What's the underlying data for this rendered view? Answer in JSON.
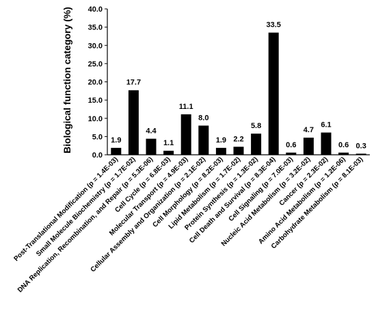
{
  "chart_data": {
    "type": "bar",
    "title": "",
    "xlabel": "",
    "ylabel": "Biological function category (%)",
    "ylim": [
      0,
      40
    ],
    "yticks": [
      "0.0",
      "5.0",
      "10.0",
      "15.0",
      "20.0",
      "25.0",
      "30.0",
      "35.0",
      "40.0"
    ],
    "grid": false,
    "legend": "none",
    "bar_color": "#000000",
    "categories": [
      "Post-Translational Modification (p = 1.4E-03)",
      "Small Molecule Biochemistry (p = 1.7E-02)",
      "DNA Replication, Recombination, and Repair (p = 5.3E-06)",
      "Cell Cycle (p = 6.8E-03)",
      "Molecular Transport (p = 4.9E-03)",
      "Cellular Assembly and Organization (p = 2.1E-02)",
      "Cell Morphology (p = 8.2E-03)",
      "Lipid Metabolism (p = 1.7E-02)",
      "Protein Synthesis (p = 1.3E-02)",
      "Cell Death and Survival (p = 8.3E-04)",
      "Cell Signaling (p = 7.0E-03)",
      "Nucleic Acid Metabolism (p = 3.2E-02)",
      "Cancer (p = 2.3E-02)",
      "Amino Acid Metabolism (p = 1.2E-06)",
      "Carbohydrate Metabolism (p = 8.1E-03)"
    ],
    "values": [
      1.9,
      17.7,
      4.4,
      1.1,
      11.1,
      8.0,
      1.9,
      2.2,
      5.8,
      33.5,
      0.6,
      4.7,
      6.1,
      0.6,
      0.3
    ],
    "data_labels": [
      "1.9",
      "17.7",
      "4.4",
      "1.1",
      "11.1",
      "8.0",
      "1.9",
      "2.2",
      "5.8",
      "33.5",
      "0.6",
      "4.7",
      "6.1",
      "0.6",
      "0.3"
    ]
  }
}
